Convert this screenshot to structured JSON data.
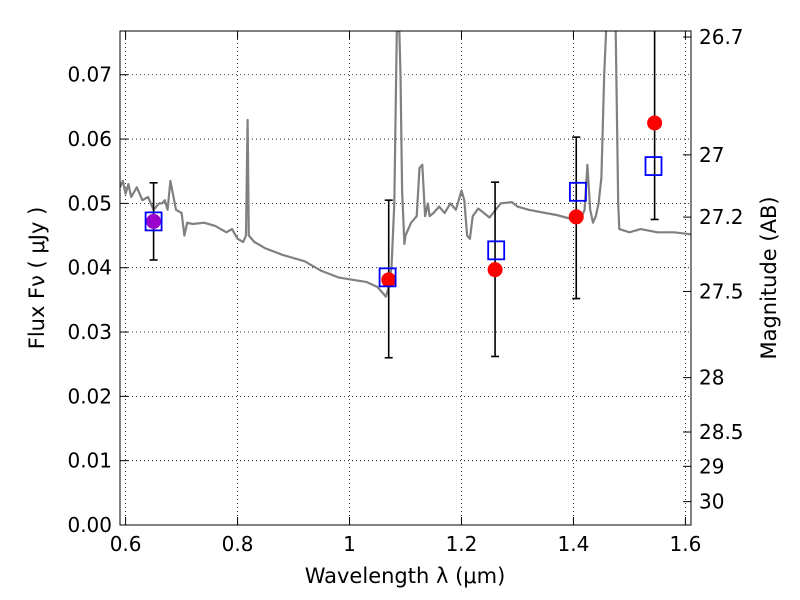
{
  "chart_data": {
    "type": "scatter",
    "xlabel": "Wavelength  λ (μm)",
    "ylabel": "Flux  Fν  ( μJy )",
    "ylabel_right": "Magnitude (AB)",
    "xlim": [
      0.59,
      1.61
    ],
    "ylim": [
      0.0,
      0.0768
    ],
    "grid": true,
    "x_ticks": [
      0.6,
      0.8,
      1.0,
      1.2,
      1.4,
      1.6
    ],
    "x_tick_labels": [
      "0.6",
      "0.8",
      "1",
      "1.2",
      "1.4",
      "1.6"
    ],
    "y_ticks": [
      0.0,
      0.01,
      0.02,
      0.03,
      0.04,
      0.05,
      0.06,
      0.07
    ],
    "y_tick_labels": [
      "0.00",
      "0.01",
      "0.02",
      "0.03",
      "0.04",
      "0.05",
      "0.06",
      "0.07"
    ],
    "mag_ticks": [
      26.7,
      27.0,
      27.2,
      27.5,
      28.0,
      28.5,
      29.0,
      30.0
    ],
    "mag_tick_labels": [
      "26.7",
      "27",
      "27.2",
      "27.5",
      "28",
      "28.5",
      "29",
      "30"
    ],
    "colors": {
      "model": "#808080",
      "observed": "#ff0000",
      "model_photometry": "#0000ff",
      "errorbar": "#000000",
      "overlap": "#9900cc"
    },
    "series": [
      {
        "kind": "spectrum",
        "x": [
          0.59,
          0.595,
          0.6,
          0.605,
          0.61,
          0.62,
          0.63,
          0.64,
          0.65,
          0.66,
          0.665,
          0.67,
          0.675,
          0.68,
          0.69,
          0.7,
          0.705,
          0.71,
          0.72,
          0.74,
          0.76,
          0.78,
          0.79,
          0.8,
          0.81,
          0.815,
          0.818,
          0.82,
          0.83,
          0.85,
          0.88,
          0.92,
          0.95,
          0.98,
          1.0,
          1.03,
          1.05,
          1.06,
          1.065,
          1.07,
          1.075,
          1.08,
          1.085,
          1.088,
          1.091,
          1.094,
          1.098,
          1.1,
          1.11,
          1.12,
          1.125,
          1.13,
          1.135,
          1.14,
          1.143,
          1.15,
          1.16,
          1.17,
          1.18,
          1.19,
          1.2,
          1.205,
          1.21,
          1.215,
          1.22,
          1.23,
          1.25,
          1.27,
          1.29,
          1.3,
          1.32,
          1.35,
          1.37,
          1.4,
          1.41,
          1.42,
          1.425,
          1.43,
          1.435,
          1.44,
          1.445,
          1.45,
          1.455,
          1.46,
          1.465,
          1.47,
          1.475,
          1.48,
          1.482,
          1.5,
          1.52,
          1.55,
          1.58,
          1.61
        ],
        "y": [
          0.0525,
          0.0535,
          0.0515,
          0.053,
          0.051,
          0.0525,
          0.0505,
          0.051,
          0.049,
          0.05,
          0.05,
          0.0505,
          0.049,
          0.0535,
          0.049,
          0.0485,
          0.045,
          0.047,
          0.0468,
          0.047,
          0.0465,
          0.0455,
          0.046,
          0.0445,
          0.044,
          0.045,
          0.063,
          0.045,
          0.044,
          0.043,
          0.042,
          0.041,
          0.0395,
          0.0385,
          0.0382,
          0.0378,
          0.037,
          0.036,
          0.0355,
          0.037,
          0.04,
          0.05,
          0.08,
          0.08,
          0.07,
          0.052,
          0.0437,
          0.045,
          0.047,
          0.048,
          0.0555,
          0.056,
          0.048,
          0.05,
          0.048,
          0.0485,
          0.0495,
          0.0485,
          0.05,
          0.049,
          0.052,
          0.0505,
          0.045,
          0.0445,
          0.048,
          0.0492,
          0.0478,
          0.05,
          0.0502,
          0.0495,
          0.049,
          0.0485,
          0.0482,
          0.0475,
          0.047,
          0.049,
          0.056,
          0.049,
          0.047,
          0.048,
          0.05,
          0.054,
          0.07,
          0.08,
          0.08,
          0.08,
          0.08,
          0.05,
          0.046,
          0.0455,
          0.046,
          0.0455,
          0.0455,
          0.0452
        ]
      },
      {
        "kind": "observed",
        "x": [
          0.65,
          1.07,
          1.26,
          1.405,
          1.545
        ],
        "y": [
          0.0472,
          0.0381,
          0.0397,
          0.0479,
          0.0625
        ],
        "yerr_low": [
          0.006,
          0.0121,
          0.0135,
          0.0127,
          0.015
        ],
        "yerr_high": [
          0.006,
          0.0124,
          0.0136,
          0.0124,
          0.015
        ]
      },
      {
        "kind": "model_photometry",
        "x": [
          0.65,
          1.068,
          1.262,
          1.408,
          1.543
        ],
        "y": [
          0.0472,
          0.0385,
          0.0427,
          0.0518,
          0.0558
        ]
      }
    ]
  }
}
